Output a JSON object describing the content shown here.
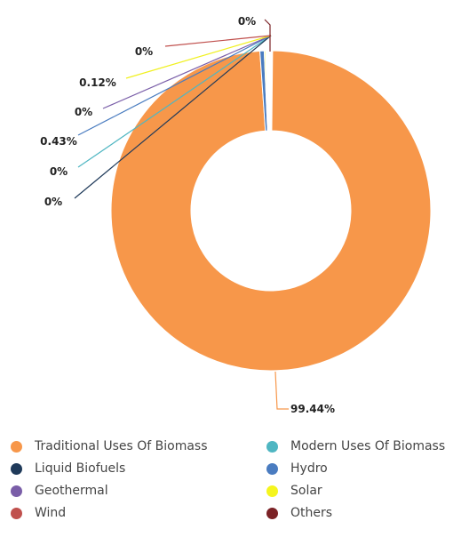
{
  "chart_data": {
    "type": "pie",
    "donut": true,
    "legend_position": "bottom",
    "slices": [
      {
        "name": "Traditional Uses Of Biomass",
        "value": 99.44,
        "label": "99.44%",
        "color": "#F7974A"
      },
      {
        "name": "Modern Uses Of Biomass",
        "value": 0,
        "label": "0%",
        "color": "#4FB6C2"
      },
      {
        "name": "Liquid Biofuels",
        "value": 0,
        "label": "0%",
        "color": "#1F3A5A"
      },
      {
        "name": "Hydro",
        "value": 0.43,
        "label": "0.43%",
        "color": "#4A7CC0"
      },
      {
        "name": "Geothermal",
        "value": 0,
        "label": "0%",
        "color": "#7A5EA8"
      },
      {
        "name": "Solar",
        "value": 0.12,
        "label": "0.12%",
        "color": "#F5F51E"
      },
      {
        "name": "Wind",
        "value": 0,
        "label": "0%",
        "color": "#C0504D"
      },
      {
        "name": "Others",
        "value": 0,
        "label": "0%",
        "color": "#7B2226"
      }
    ]
  }
}
